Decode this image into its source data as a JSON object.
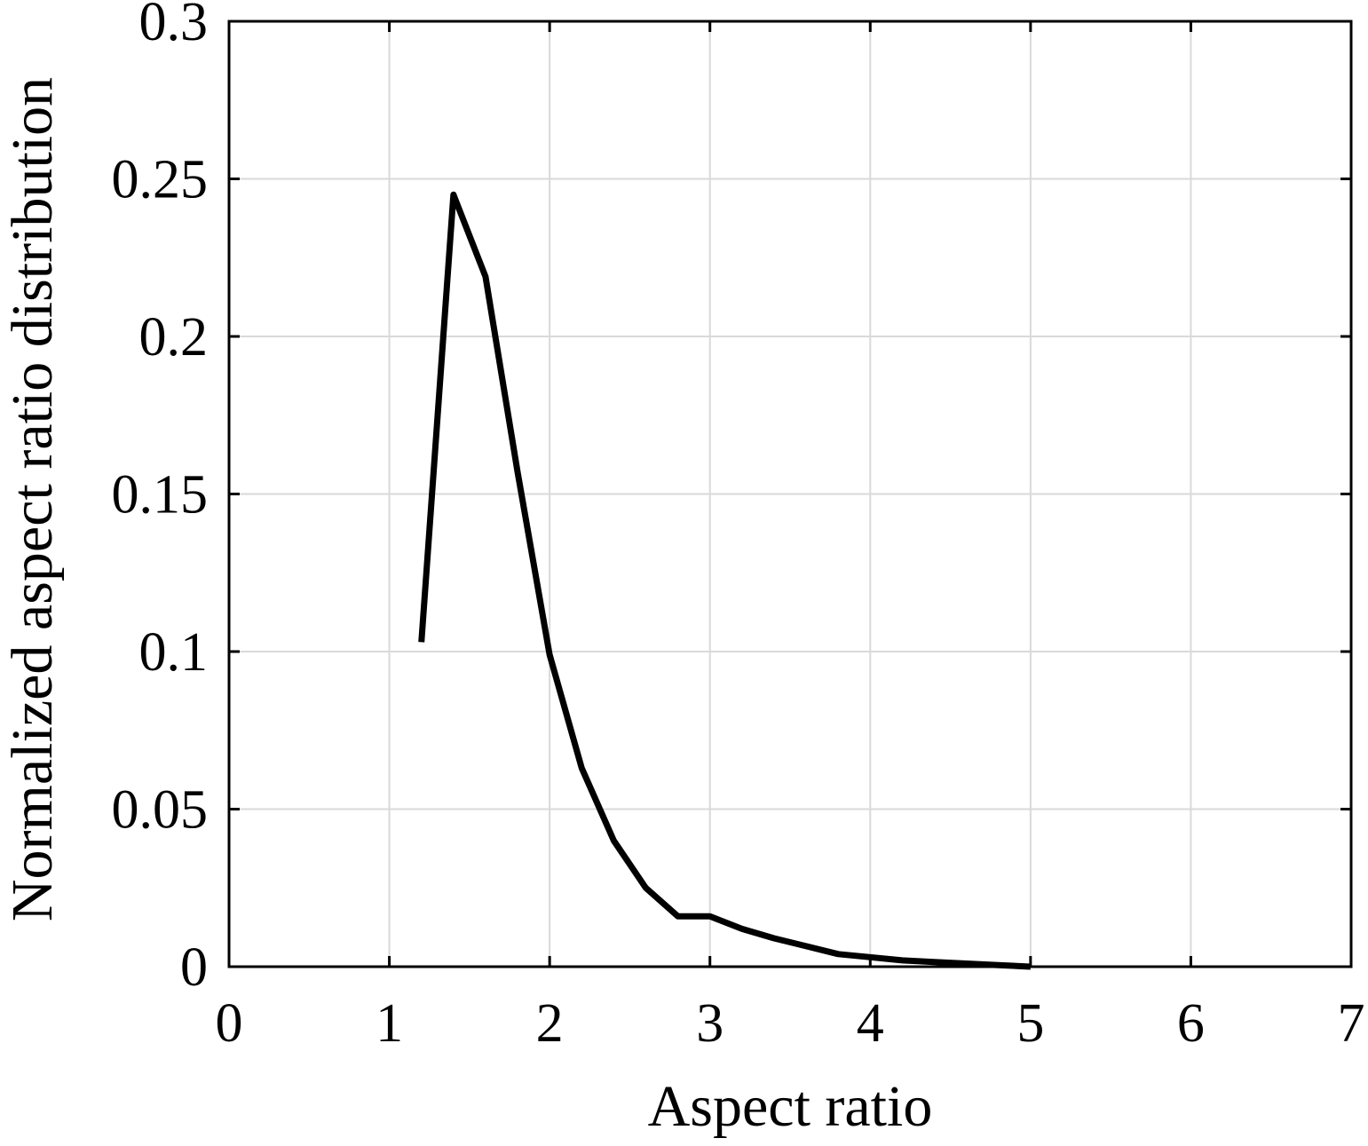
{
  "chart_data": {
    "type": "line",
    "title": "",
    "xlabel": "Aspect ratio",
    "ylabel": "Normalized aspect ratio distribution",
    "xlim": [
      0,
      7
    ],
    "ylim": [
      0,
      0.3
    ],
    "x_ticks": [
      0,
      1,
      2,
      3,
      4,
      5,
      6,
      7
    ],
    "y_ticks": [
      0,
      0.05,
      0.1,
      0.15,
      0.2,
      0.25,
      0.3
    ],
    "x_tick_labels": [
      "0",
      "1",
      "2",
      "3",
      "4",
      "5",
      "6",
      "7"
    ],
    "y_tick_labels": [
      "0",
      "0.05",
      "0.1",
      "0.15",
      "0.2",
      "0.25",
      "0.3"
    ],
    "grid": true,
    "colors": {
      "line": "#000000",
      "grid": "#d9d9d9",
      "frame": "#000000"
    },
    "series": [
      {
        "x": [
          1.2,
          1.4,
          1.6,
          1.8,
          2.0,
          2.2,
          2.4,
          2.6,
          2.8,
          3.0,
          3.2,
          3.4,
          3.6,
          3.8,
          4.0,
          4.2,
          4.4,
          4.6,
          4.8,
          5.0
        ],
        "y": [
          0.103,
          0.245,
          0.219,
          0.157,
          0.099,
          0.063,
          0.04,
          0.025,
          0.016,
          0.016,
          0.012,
          0.009,
          0.0065,
          0.004,
          0.003,
          0.002,
          0.0015,
          0.001,
          0.0005,
          0.0
        ]
      }
    ]
  }
}
